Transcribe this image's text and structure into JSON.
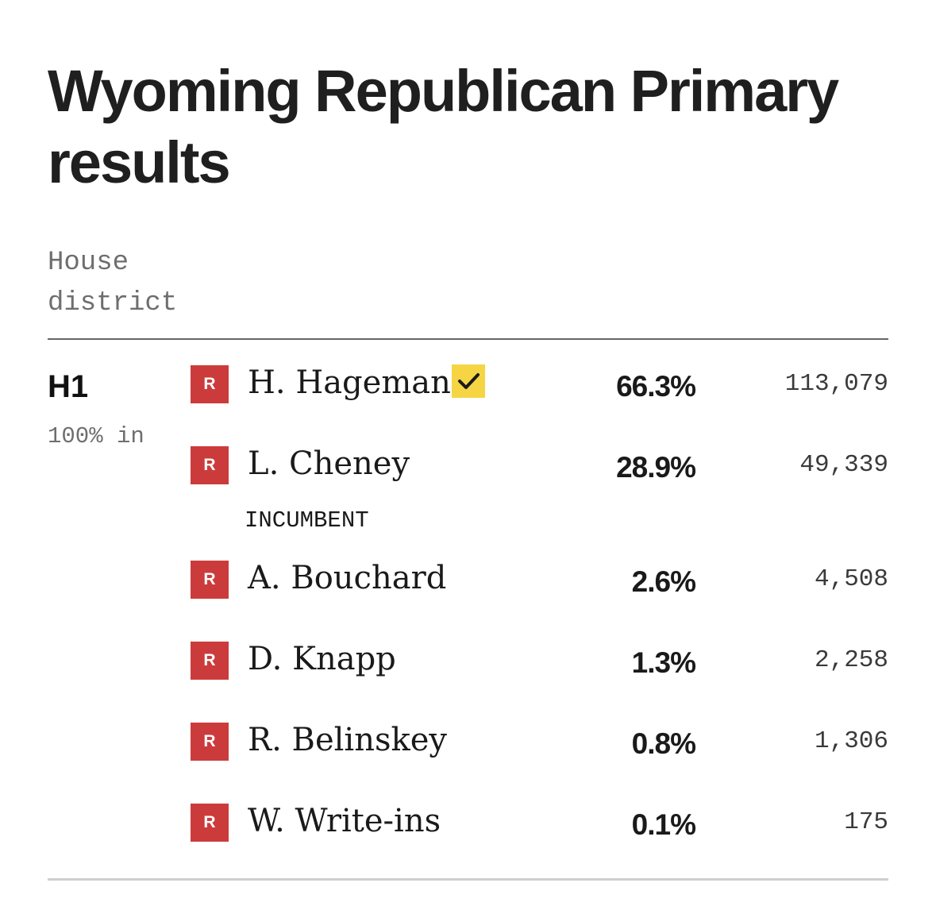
{
  "title": "Wyoming Republican Primary results",
  "section_label": "House district",
  "race": {
    "district": "H1",
    "reporting": "100% in",
    "incumbent_label": "INCUMBENT",
    "candidates": [
      {
        "party": "R",
        "name": "H. Hageman",
        "pct": "66.3%",
        "votes": "113,079",
        "winner": true,
        "incumbent": false
      },
      {
        "party": "R",
        "name": "L. Cheney",
        "pct": "28.9%",
        "votes": "49,339",
        "winner": false,
        "incumbent": true
      },
      {
        "party": "R",
        "name": "A. Bouchard",
        "pct": "2.6%",
        "votes": "4,508",
        "winner": false,
        "incumbent": false
      },
      {
        "party": "R",
        "name": "D. Knapp",
        "pct": "1.3%",
        "votes": "2,258",
        "winner": false,
        "incumbent": false
      },
      {
        "party": "R",
        "name": "R. Belinskey",
        "pct": "0.8%",
        "votes": "1,306",
        "winner": false,
        "incumbent": false
      },
      {
        "party": "R",
        "name": "W. Write-ins",
        "pct": "0.1%",
        "votes": "175",
        "winner": false,
        "incumbent": false
      }
    ]
  },
  "colors": {
    "republican": "#cc3b3b",
    "winner_highlight": "#f5d544",
    "muted_text": "#6e6e6e"
  },
  "icons": {
    "winner": "checkmark-icon"
  }
}
